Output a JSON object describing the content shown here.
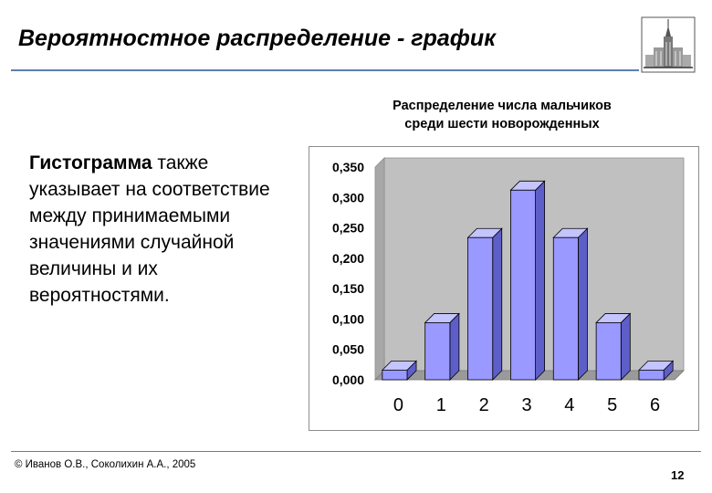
{
  "slide": {
    "title": "Вероятностное распределение - график",
    "body_bold": "Гистограмма",
    "body_rest": " также указывает на соответствие между принимаемыми значениями случайной величины и их вероятностями.",
    "footer": "© Иванов О.В., Соколихин А.А., 2005",
    "page_number": "12"
  },
  "chart_data": {
    "type": "bar",
    "style": "3d-column",
    "title_line1": "Распределение числа мальчиков",
    "title_line2": "среди шести новорожденных",
    "categories": [
      "0",
      "1",
      "2",
      "3",
      "4",
      "5",
      "6"
    ],
    "values": [
      0.016,
      0.094,
      0.234,
      0.312,
      0.234,
      0.094,
      0.016
    ],
    "ylim": [
      0,
      0.35
    ],
    "yticks": [
      "0,350",
      "0,300",
      "0,250",
      "0,200",
      "0,150",
      "0,100",
      "0,050",
      "0,000"
    ],
    "grid": false,
    "legend": "none",
    "colors": {
      "bar_front": "#9999ff",
      "bar_side": "#5e5ec9",
      "bar_top": "#c4c4ff",
      "wall": "#c0c0c0",
      "floor": "#9a9a9a"
    }
  }
}
